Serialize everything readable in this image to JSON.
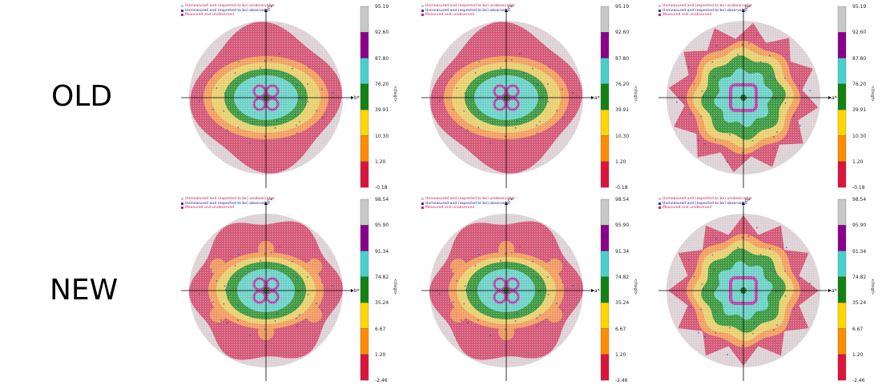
{
  "rows": [
    {
      "label": "OLD",
      "ticks": [
        "95.19",
        "92.60",
        "87.80",
        "76.20",
        "39.91",
        "10.30",
        "1.20",
        "-0.18"
      ]
    },
    {
      "label": "NEW",
      "ticks": [
        "98.54",
        "95.90",
        "91.34",
        "74.82",
        "35.24",
        "6.67",
        "1.20",
        "-2.46"
      ]
    }
  ],
  "panels_axes": [
    {
      "h": "b*",
      "v": "c*"
    },
    {
      "h": "a*",
      "v": "c*"
    },
    {
      "h": "a*",
      "v": "b*"
    }
  ],
  "legend": [
    {
      "text": "Unmeasured and (expected to be) unobservable",
      "color": "#d0c4c8",
      "text_color": "#c2185b"
    },
    {
      "text": "Unmeasured and (expected to be) observable",
      "color": "#2233cc",
      "text_color": "#1a237e"
    },
    {
      "text": "Measured and unobserved",
      "color": "#d81b60",
      "text_color": "#d81b60"
    }
  ],
  "colorbar_title": "<I/sigI>",
  "colorbar_colors": [
    "#c8c8c8",
    "#8b008b",
    "#48d1cc",
    "#128212",
    "#ffd700",
    "#ff8c00",
    "#dc143c"
  ],
  "zone_colors": {
    "outer": "#dcd2d5",
    "pink": "#d45a78",
    "orange": "#f2a060",
    "yellow": "#e8d070",
    "green": "#3f9a42",
    "cyan": "#6ed2c8",
    "magenta": "#c040a8",
    "center": "#2a6a2a"
  }
}
